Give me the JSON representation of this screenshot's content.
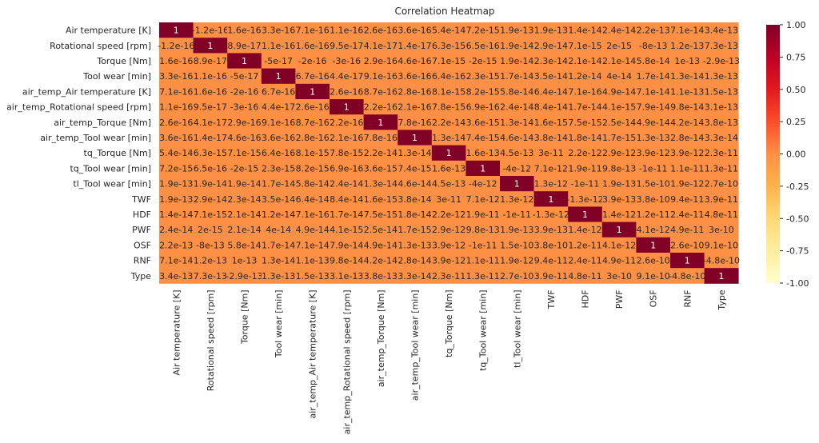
{
  "chart_data": {
    "type": "heatmap",
    "title": "Correlation Heatmap",
    "row_labels": [
      "Air temperature [K]",
      "Rotational speed [rpm]",
      "Torque [Nm]",
      "Tool wear [min]",
      "air_temp_Air temperature [K]",
      "air_temp_Rotational speed [rpm]",
      "air_temp_Torque [Nm]",
      "air_temp_Tool wear [min]",
      "tq_Torque [Nm]",
      "tq_Tool wear [min]",
      "tl_Tool wear [min]",
      "TWF",
      "HDF",
      "PWF",
      "OSF",
      "RNF",
      "Type"
    ],
    "col_labels": [
      "Air temperature [K]",
      "Rotational speed [rpm]",
      "Torque [Nm]",
      "Tool wear [min]",
      "air_temp_Air temperature [K]",
      "air_temp_Rotational speed [rpm]",
      "air_temp_Torque [Nm]",
      "air_temp_Tool wear [min]",
      "tq_Torque [Nm]",
      "tq_Tool wear [min]",
      "tl_Tool wear [min]",
      "TWF",
      "HDF",
      "PWF",
      "OSF",
      "RNF",
      "Type"
    ],
    "cell_text": [
      [
        "1",
        "-1.2e-16",
        "1.6e-16",
        "3.3e-16",
        "7.1e-16",
        "1.1e-16",
        "2.6e-16",
        "3.6e-16",
        "5.4e-14",
        "7.2e-15",
        "1.9e-13",
        "1.9e-13",
        "1.4e-14",
        "2.4e-14",
        "2.2e-13",
        "7.1e-14",
        "3.4e-13"
      ],
      [
        "-1.2e-16",
        "1",
        "8.9e-17",
        "1.1e-16",
        "1.6e-16",
        "9.5e-17",
        "4.1e-17",
        "1.4e-17",
        "6.3e-15",
        "6.5e-16",
        "1.9e-14",
        "2.9e-14",
        "7.1e-15",
        "2e-15",
        "-8e-13",
        "1.2e-13",
        "7.3e-13"
      ],
      [
        "1.6e-16",
        "8.9e-17",
        "1",
        "-5e-17",
        "-2e-16",
        "-3e-16",
        "2.9e-16",
        "4.6e-16",
        "7.1e-15",
        "-2e-15",
        "1.9e-14",
        "2.3e-14",
        "2.1e-14",
        "2.1e-14",
        "5.8e-14",
        "1e-13",
        "-2.9e-13"
      ],
      [
        "3.3e-16",
        "1.1e-16",
        "-5e-17",
        "1",
        "6.7e-16",
        "4.4e-17",
        "9.1e-16",
        "3.6e-16",
        "6.4e-16",
        "2.3e-15",
        "1.7e-14",
        "3.5e-14",
        "1.2e-14",
        "4e-14",
        "1.7e-14",
        "1.3e-14",
        "1.3e-13"
      ],
      [
        "7.1e-16",
        "1.6e-16",
        "-2e-16",
        "6.7e-16",
        "1",
        "2.6e-16",
        "8.7e-16",
        "2.8e-16",
        "8.1e-15",
        "8.2e-15",
        "5.8e-14",
        "6.4e-14",
        "7.1e-16",
        "4.9e-14",
        "7.1e-14",
        "1.1e-13",
        "1.5e-13"
      ],
      [
        "1.1e-16",
        "9.5e-17",
        "-3e-16",
        "4.4e-17",
        "2.6e-16",
        "1",
        "2.2e-16",
        "2.1e-16",
        "7.8e-15",
        "6.9e-16",
        "2.4e-14",
        "8.4e-14",
        "1.7e-14",
        "4.1e-15",
        "7.9e-14",
        "9.8e-14",
        "3.1e-13"
      ],
      [
        "2.6e-16",
        "4.1e-17",
        "2.9e-16",
        "9.1e-16",
        "8.7e-16",
        "2.2e-16",
        "1",
        "7.8e-16",
        "2.2e-14",
        "3.6e-15",
        "1.3e-14",
        "1.6e-15",
        "7.5e-15",
        "2.5e-14",
        "4.9e-14",
        "4.2e-14",
        "3.8e-13"
      ],
      [
        "3.6e-16",
        "1.4e-17",
        "4.6e-16",
        "3.6e-16",
        "2.8e-16",
        "2.1e-16",
        "7.8e-16",
        "1",
        "1.3e-14",
        "7.4e-15",
        "4.6e-14",
        "3.8e-14",
        "1.8e-14",
        "1.7e-15",
        "1.3e-13",
        "2.8e-14",
        "3.3e-14"
      ],
      [
        "5.4e-14",
        "6.3e-15",
        "7.1e-15",
        "6.4e-16",
        "8.1e-15",
        "7.8e-15",
        "2.2e-14",
        "1.3e-14",
        "1",
        "1.6e-13",
        "4.5e-13",
        "3e-11",
        "2.2e-12",
        "2.9e-12",
        "3.9e-12",
        "3.9e-12",
        "2.3e-11"
      ],
      [
        "7.2e-15",
        "6.5e-16",
        "-2e-15",
        "2.3e-15",
        "8.2e-15",
        "6.9e-16",
        "3.6e-15",
        "7.4e-15",
        "1.6e-13",
        "1",
        "-4e-12",
        "7.1e-12",
        "1.9e-11",
        "9.8e-13",
        "-1e-11",
        "1.1e-11",
        "1.3e-11"
      ],
      [
        "1.9e-13",
        "1.9e-14",
        "1.9e-14",
        "1.7e-14",
        "5.8e-14",
        "2.4e-14",
        "1.3e-14",
        "4.6e-14",
        "4.5e-13",
        "-4e-12",
        "1",
        "1.3e-12",
        "-1e-11",
        "1.9e-13",
        "1.5e-10",
        "1.9e-12",
        "2.7e-10"
      ],
      [
        "1.9e-13",
        "2.9e-14",
        "2.3e-14",
        "3.5e-14",
        "6.4e-14",
        "8.4e-14",
        "1.6e-15",
        "3.8e-14",
        "3e-11",
        "7.1e-12",
        "1.3e-12",
        "1",
        "-1.3e-12",
        "3.9e-13",
        "3.8e-10",
        "9.4e-11",
        "3.9e-11"
      ],
      [
        "1.4e-14",
        "7.1e-15",
        "2.1e-14",
        "1.2e-14",
        "7.1e-16",
        "1.7e-14",
        "7.5e-15",
        "1.8e-14",
        "2.2e-12",
        "1.9e-11",
        "-1e-11",
        "-1.3e-12",
        "1",
        "1.4e-12",
        "1.2e-11",
        "2.4e-11",
        "4.8e-11"
      ],
      [
        "2.4e-14",
        "2e-15",
        "2.1e-14",
        "4e-14",
        "4.9e-14",
        "4.1e-15",
        "2.5e-14",
        "1.7e-15",
        "2.9e-12",
        "9.8e-13",
        "1.9e-13",
        "3.9e-13",
        "1.4e-12",
        "1",
        "4.1e-12",
        "4.9e-11",
        "3e-10"
      ],
      [
        "2.2e-13",
        "-8e-13",
        "5.8e-14",
        "1.7e-14",
        "7.1e-14",
        "7.9e-14",
        "4.9e-14",
        "1.3e-13",
        "3.9e-12",
        "-1e-11",
        "1.5e-10",
        "3.8e-10",
        "1.2e-11",
        "4.1e-12",
        "1",
        "2.6e-10",
        "9.1e-10"
      ],
      [
        "7.1e-14",
        "1.2e-13",
        "1e-13",
        "1.3e-14",
        "1.1e-13",
        "9.8e-14",
        "4.2e-14",
        "2.8e-14",
        "3.9e-12",
        "1.1e-11",
        "1.9e-12",
        "9.4e-11",
        "2.4e-11",
        "4.9e-11",
        "2.6e-10",
        "1",
        "-4.8e-10"
      ],
      [
        "3.4e-13",
        "7.3e-13",
        "-2.9e-13",
        "1.3e-13",
        "1.5e-13",
        "3.1e-13",
        "3.8e-13",
        "3.3e-14",
        "2.3e-11",
        "1.3e-11",
        "2.7e-10",
        "3.9e-11",
        "4.8e-11",
        "3e-10",
        "9.1e-10",
        "-4.8e-10",
        "1"
      ]
    ],
    "value_range": [
      -1,
      1
    ],
    "colorbar_ticks": [
      "1.00",
      "0.75",
      "0.50",
      "0.25",
      "0.00",
      "-0.25",
      "-0.50",
      "-0.75",
      "-1.00"
    ],
    "colormap": "YlOrRd",
    "colors": {
      "zero": "#fd9044",
      "one": "#800026",
      "low": "#ffffcc",
      "diag_text": "#ffffff",
      "cell_text": "#262626"
    }
  }
}
